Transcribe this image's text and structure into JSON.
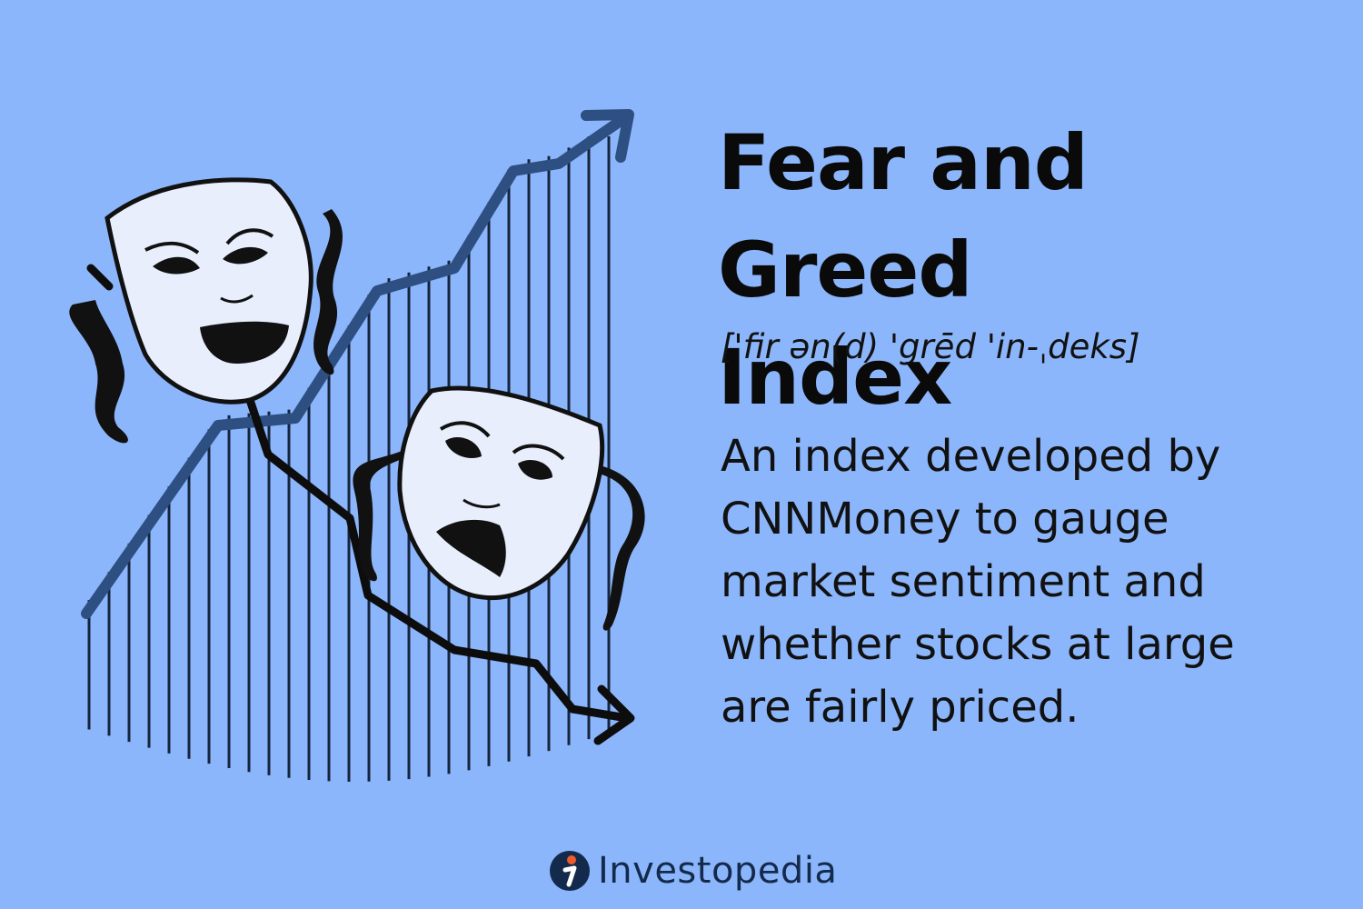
{
  "heading": {
    "title": "Fear and Greed\nIndex",
    "pronunciation": "['fir ən(d) 'grēd 'in-ˌdeks]"
  },
  "definition": "An index developed by CNNMoney to gauge market sentiment and whether stocks at large are fairly priced.",
  "brand": {
    "name": "Investopedia",
    "logo_icon": "investopedia-i-logo"
  },
  "illustration": {
    "icons": [
      "comedy-mask-icon",
      "tragedy-mask-icon",
      "up-trend-arrow-icon",
      "down-trend-arrow-icon"
    ]
  },
  "colors": {
    "background": "#8cb6fb",
    "line": "#2d4f82",
    "mask_fill": "#e8eefc",
    "ink": "#0a0a0a",
    "brand_dark": "#142a4c",
    "brand_accent": "#ef5b2a"
  }
}
